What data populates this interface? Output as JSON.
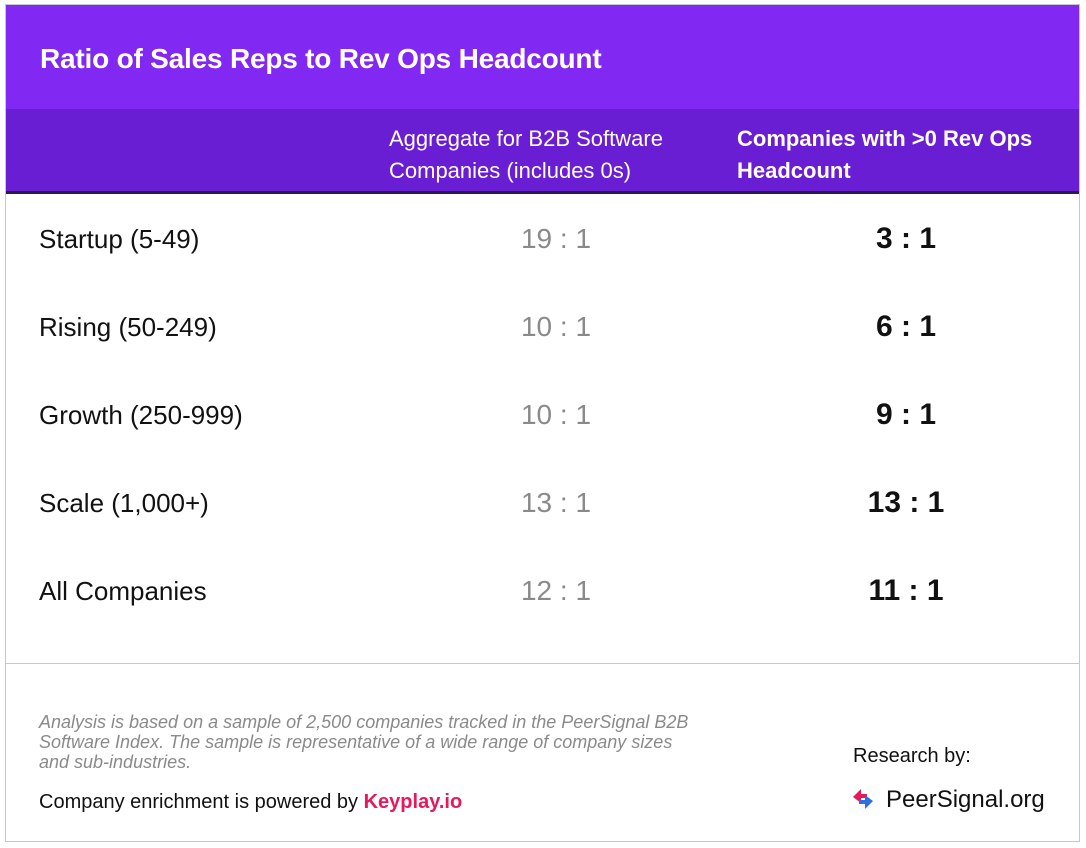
{
  "title": "Ratio of Sales Reps to Rev Ops Headcount",
  "columns": {
    "aggregate": "Aggregate for B2B Software Companies (includes 0s)",
    "nonzero": "Companies with >0 Rev Ops Headcount"
  },
  "rows": [
    {
      "label": "Startup (5-49)",
      "aggregate": "19 : 1",
      "nonzero": "3 : 1"
    },
    {
      "label": "Rising (50-249)",
      "aggregate": "10 : 1",
      "nonzero": "6 : 1"
    },
    {
      "label": "Growth (250-999)",
      "aggregate": "10 : 1",
      "nonzero": "9 : 1"
    },
    {
      "label": "Scale (1,000+)",
      "aggregate": "13 : 1",
      "nonzero": "13 : 1"
    },
    {
      "label": "All Companies",
      "aggregate": "12 : 1",
      "nonzero": "11 : 1"
    }
  ],
  "footer": {
    "note": "Analysis is based on a sample of 2,500 companies tracked in the PeerSignal B2B Software Index. The sample is representative of a wide range of company sizes and sub-industries.",
    "enrichment_prefix": "Company enrichment is powered by ",
    "enrichment_link": "Keyplay.io",
    "research_label": "Research by:",
    "brand_name": "PeerSignal.org",
    "brand_icon": "peersignal-logo-icon"
  },
  "colors": {
    "title_bg": "#8129f2",
    "header_bg": "#6a1ed4",
    "link": "#e8195a",
    "muted": "#8a8a8a"
  }
}
